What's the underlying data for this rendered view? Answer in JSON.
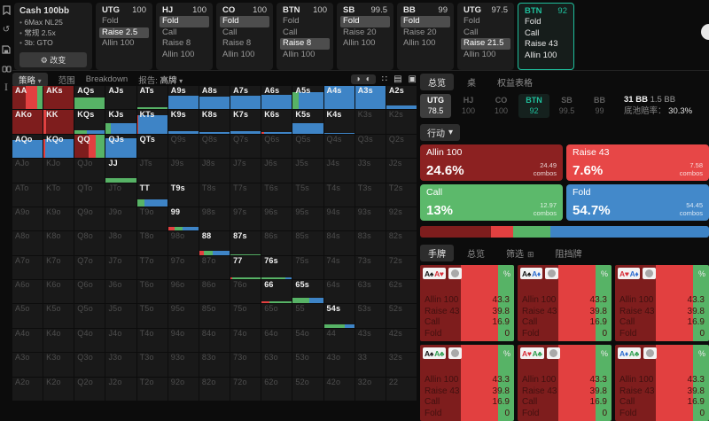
{
  "colors": {
    "a": "#7e1d1d",
    "r": "#e24040",
    "c": "#57b366",
    "f": "#3e84c6",
    "accent": "#1fbf9c",
    "card_a": "#8c2121",
    "card_r": "#e74747",
    "card_c": "#5cb96b",
    "card_f": "#4389ca"
  },
  "sidebar": {
    "icons": [
      "bookmark",
      "undo",
      "save",
      "cards",
      "text-cursor"
    ]
  },
  "top_bar": {
    "settings": {
      "title": "Cash 100bb",
      "items": [
        "6Max NL25",
        "常规 2.5x",
        "3b: GTO"
      ],
      "button_icon": "⚙",
      "button": "改变"
    },
    "positions": [
      {
        "name": "UTG",
        "stack": "100",
        "actions": [
          "Fold",
          "Raise 2.5",
          "Allin 100"
        ],
        "selected": 1,
        "active": false
      },
      {
        "name": "HJ",
        "stack": "100",
        "actions": [
          "Fold",
          "Call",
          "Raise 8",
          "Allin 100"
        ],
        "selected": 0,
        "active": false
      },
      {
        "name": "CO",
        "stack": "100",
        "actions": [
          "Fold",
          "Call",
          "Raise 8",
          "Allin 100"
        ],
        "selected": 0,
        "active": false
      },
      {
        "name": "BTN",
        "stack": "100",
        "actions": [
          "Fold",
          "Call",
          "Raise 8",
          "Allin 100"
        ],
        "selected": 2,
        "active": false
      },
      {
        "name": "SB",
        "stack": "99.5",
        "actions": [
          "Fold",
          "Raise 20",
          "Allin 100"
        ],
        "selected": 0,
        "active": false
      },
      {
        "name": "BB",
        "stack": "99",
        "actions": [
          "Fold",
          "Raise 20",
          "Allin 100"
        ],
        "selected": 0,
        "active": false
      },
      {
        "name": "UTG",
        "stack": "97.5",
        "actions": [
          "Fold",
          "Call",
          "Raise 21.5",
          "Allin 100"
        ],
        "selected": 2,
        "active": false
      },
      {
        "name": "BTN",
        "stack": "92",
        "actions": [
          "Fold",
          "Call",
          "Raise 43",
          "Allin 100"
        ],
        "selected": -1,
        "active": true
      }
    ]
  },
  "toolbar": {
    "tabs": [
      "策略",
      "范围",
      "Breakdown"
    ],
    "caret": "▾",
    "report_label": "报告:",
    "report_value": "高牌",
    "icons": [
      "pie",
      "contrast",
      "fit",
      "rows",
      "square"
    ]
  },
  "matrix": {
    "rows": [
      [
        [
          "AA",
          1,
          100,
          [
            [
              "a",
              43
            ],
            [
              "r",
              40
            ],
            [
              "c",
              17
            ]
          ]
        ],
        [
          "AKs",
          1,
          100,
          [
            [
              "a",
              100
            ]
          ]
        ],
        [
          "AQs",
          1,
          50,
          [
            [
              "c",
              100
            ]
          ]
        ],
        [
          "AJs",
          1
        ],
        [
          "ATs",
          1,
          8,
          [
            [
              "c",
              100
            ]
          ]
        ],
        [
          "A9s",
          1,
          60,
          [
            [
              "f",
              100
            ]
          ]
        ],
        [
          "A8s",
          1,
          55,
          [
            [
              "f",
              100
            ]
          ]
        ],
        [
          "A7s",
          1,
          58,
          [
            [
              "f",
              100
            ]
          ]
        ],
        [
          "A6s",
          1,
          63,
          [
            [
              "f",
              100
            ]
          ]
        ],
        [
          "A5s",
          1,
          72,
          [
            [
              "c",
              20
            ],
            [
              "f",
              80
            ]
          ]
        ],
        [
          "A4s",
          1,
          100,
          [
            [
              "f",
              100
            ]
          ]
        ],
        [
          "A3s",
          1,
          100,
          [
            [
              "f",
              100
            ]
          ]
        ],
        [
          "A2s",
          1,
          18,
          [
            [
              "f",
              100
            ]
          ]
        ]
      ],
      [
        [
          "AKo",
          1,
          100,
          [
            [
              "a",
              100
            ]
          ]
        ],
        [
          "KK",
          1,
          100,
          [
            [
              "r",
              8
            ],
            [
              "a",
              92
            ]
          ]
        ],
        [
          "KQs",
          1,
          14,
          [
            [
              "c",
              40
            ],
            [
              "f",
              60
            ]
          ]
        ],
        [
          "KJs",
          1,
          45,
          [
            [
              "c",
              15
            ],
            [
              "f",
              85
            ]
          ]
        ],
        [
          "KTs",
          1,
          78,
          [
            [
              "r",
              5
            ],
            [
              "f",
              95
            ]
          ]
        ],
        [
          "K9s",
          1,
          12,
          [
            [
              "f",
              100
            ]
          ]
        ],
        [
          "K8s",
          1,
          8,
          [
            [
              "f",
              100
            ]
          ]
        ],
        [
          "K7s",
          1,
          10,
          [
            [
              "f",
              100
            ]
          ]
        ],
        [
          "K6s",
          1,
          8,
          [
            [
              "r",
              8
            ],
            [
              "f",
              92
            ]
          ]
        ],
        [
          "K5s",
          1,
          45,
          [
            [
              "f",
              100
            ]
          ]
        ],
        [
          "K4s",
          1,
          4,
          [
            [
              "f",
              100
            ]
          ]
        ],
        [
          "K3s",
          0
        ],
        [
          "K2s",
          0
        ]
      ],
      [
        [
          "AQo",
          1,
          75,
          [
            [
              "f",
              100
            ]
          ]
        ],
        [
          "KQo",
          1,
          82,
          [
            [
              "r",
              4
            ],
            [
              "f",
              96
            ]
          ]
        ],
        [
          "QQ",
          1,
          100,
          [
            [
              "a",
              45
            ],
            [
              "r",
              25
            ],
            [
              "c",
              30
            ]
          ]
        ],
        [
          "QJs",
          1,
          85,
          [
            [
              "f",
              100
            ]
          ]
        ],
        [
          "QTs",
          1
        ],
        [
          "Q9s",
          0
        ],
        [
          "Q8s",
          0
        ],
        [
          "Q7s",
          0
        ],
        [
          "Q6s",
          0
        ],
        [
          "Q5s",
          0
        ],
        [
          "Q4s",
          0
        ],
        [
          "Q3s",
          0
        ],
        [
          "Q2s",
          0
        ]
      ],
      [
        [
          "AJo",
          0
        ],
        [
          "KJo",
          0
        ],
        [
          "QJo",
          0
        ],
        [
          "JJ",
          1,
          18,
          [
            [
              "c",
              100
            ]
          ]
        ],
        [
          "JTs",
          0
        ],
        [
          "J9s",
          0
        ],
        [
          "J8s",
          0
        ],
        [
          "J7s",
          0
        ],
        [
          "J6s",
          0
        ],
        [
          "J5s",
          0
        ],
        [
          "J4s",
          0
        ],
        [
          "J3s",
          0
        ],
        [
          "J2s",
          0
        ]
      ],
      [
        [
          "ATo",
          0
        ],
        [
          "KTo",
          0
        ],
        [
          "QTo",
          0
        ],
        [
          "JTo",
          0
        ],
        [
          "TT",
          1,
          30,
          [
            [
              "c",
              25
            ],
            [
              "f",
              75
            ]
          ]
        ],
        [
          "T9s",
          1
        ],
        [
          "T8s",
          0
        ],
        [
          "T7s",
          0
        ],
        [
          "T6s",
          0
        ],
        [
          "T5s",
          0
        ],
        [
          "T4s",
          0
        ],
        [
          "T3s",
          0
        ],
        [
          "T2s",
          0
        ]
      ],
      [
        [
          "A9o",
          0
        ],
        [
          "K9o",
          0
        ],
        [
          "Q9o",
          0
        ],
        [
          "J9o",
          0
        ],
        [
          "T9o",
          0
        ],
        [
          "99",
          1,
          18,
          [
            [
              "r",
              20
            ],
            [
              "c",
              27
            ],
            [
              "f",
              53
            ]
          ]
        ],
        [
          "98s",
          0
        ],
        [
          "97s",
          0
        ],
        [
          "96s",
          0
        ],
        [
          "95s",
          0
        ],
        [
          "94s",
          0
        ],
        [
          "93s",
          0
        ],
        [
          "92s",
          0
        ]
      ],
      [
        [
          "A8o",
          0
        ],
        [
          "K8o",
          0
        ],
        [
          "Q8o",
          0
        ],
        [
          "J8o",
          0
        ],
        [
          "T8o",
          0
        ],
        [
          "98o",
          0
        ],
        [
          "88",
          1,
          18,
          [
            [
              "r",
              15
            ],
            [
              "c",
              30
            ],
            [
              "f",
              55
            ]
          ]
        ],
        [
          "87s",
          1,
          4,
          [
            [
              "c",
              100
            ]
          ]
        ],
        [
          "86s",
          0
        ],
        [
          "85s",
          0
        ],
        [
          "84s",
          0
        ],
        [
          "83s",
          0
        ],
        [
          "82s",
          0
        ]
      ],
      [
        [
          "A7o",
          0
        ],
        [
          "K7o",
          0
        ],
        [
          "Q7o",
          0
        ],
        [
          "J7o",
          0
        ],
        [
          "T7o",
          0
        ],
        [
          "97o",
          0
        ],
        [
          "87o",
          0
        ],
        [
          "77",
          1,
          8,
          [
            [
              "r",
              6
            ],
            [
              "c",
              94
            ]
          ]
        ],
        [
          "76s",
          1,
          7,
          [
            [
              "c",
              78
            ],
            [
              "f",
              22
            ]
          ]
        ],
        [
          "75s",
          0
        ],
        [
          "74s",
          0
        ],
        [
          "73s",
          0
        ],
        [
          "72s",
          0
        ]
      ],
      [
        [
          "A6o",
          0
        ],
        [
          "K6o",
          0
        ],
        [
          "Q6o",
          0
        ],
        [
          "J6o",
          0
        ],
        [
          "T6o",
          0
        ],
        [
          "96o",
          0
        ],
        [
          "86o",
          0
        ],
        [
          "76o",
          0
        ],
        [
          "66",
          1,
          8,
          [
            [
              "r",
              25
            ],
            [
              "c",
              75
            ]
          ]
        ],
        [
          "65s",
          1,
          25,
          [
            [
              "c",
              55
            ],
            [
              "f",
              45
            ]
          ]
        ],
        [
          "64s",
          0
        ],
        [
          "63s",
          0
        ],
        [
          "62s",
          0
        ]
      ],
      [
        [
          "A5o",
          0
        ],
        [
          "K5o",
          0
        ],
        [
          "Q5o",
          0
        ],
        [
          "J5o",
          0
        ],
        [
          "T5o",
          0
        ],
        [
          "95o",
          0
        ],
        [
          "85o",
          0
        ],
        [
          "75o",
          0
        ],
        [
          "65o",
          0
        ],
        [
          "55",
          0
        ],
        [
          "54s",
          1,
          16,
          [
            [
              "c",
              68
            ],
            [
              "f",
              32
            ]
          ]
        ],
        [
          "53s",
          0
        ],
        [
          "52s",
          0
        ]
      ],
      [
        [
          "A4o",
          0
        ],
        [
          "K4o",
          0
        ],
        [
          "Q4o",
          0
        ],
        [
          "J4o",
          0
        ],
        [
          "T4o",
          0
        ],
        [
          "94o",
          0
        ],
        [
          "84o",
          0
        ],
        [
          "74o",
          0
        ],
        [
          "64o",
          0
        ],
        [
          "54o",
          0
        ],
        [
          "44",
          0
        ],
        [
          "43s",
          0
        ],
        [
          "42s",
          0
        ]
      ],
      [
        [
          "A3o",
          0
        ],
        [
          "K3o",
          0
        ],
        [
          "Q3o",
          0
        ],
        [
          "J3o",
          0
        ],
        [
          "T3o",
          0
        ],
        [
          "93o",
          0
        ],
        [
          "83o",
          0
        ],
        [
          "73o",
          0
        ],
        [
          "63o",
          0
        ],
        [
          "53o",
          0
        ],
        [
          "43o",
          0
        ],
        [
          "33",
          0
        ],
        [
          "32s",
          0
        ]
      ],
      [
        [
          "A2o",
          0
        ],
        [
          "K2o",
          0
        ],
        [
          "Q2o",
          0
        ],
        [
          "J2o",
          0
        ],
        [
          "T2o",
          0
        ],
        [
          "92o",
          0
        ],
        [
          "82o",
          0
        ],
        [
          "72o",
          0
        ],
        [
          "62o",
          0
        ],
        [
          "52o",
          0
        ],
        [
          "42o",
          0
        ],
        [
          "32o",
          0
        ],
        [
          "22",
          0
        ]
      ]
    ]
  },
  "right_panel": {
    "tabs": [
      "总览",
      "桌",
      "权益表格"
    ],
    "chips": [
      {
        "name": "UTG",
        "stack": "78.5",
        "state": "sel"
      },
      {
        "name": "HJ",
        "stack": "100",
        "state": ""
      },
      {
        "name": "CO",
        "stack": "100",
        "state": ""
      },
      {
        "name": "BTN",
        "stack": "92",
        "state": "accent"
      },
      {
        "name": "SB",
        "stack": "99.5",
        "state": ""
      },
      {
        "name": "BB",
        "stack": "99",
        "state": ""
      }
    ],
    "pot": {
      "bb": "31 BB",
      "extra": "1.5 BB",
      "odds_label": "底池赔率：",
      "odds_value": "30.3%"
    },
    "action_dropdown": "行动",
    "actions": [
      {
        "label": "Allin 100",
        "pct": "24.6%",
        "combos": "24.49",
        "unit": "combos",
        "key": "card_a"
      },
      {
        "label": "Raise 43",
        "pct": "7.6%",
        "combos": "7.58",
        "unit": "combos",
        "key": "card_r"
      },
      {
        "label": "Call",
        "pct": "13%",
        "combos": "12.97",
        "unit": "combos",
        "key": "card_c"
      },
      {
        "label": "Fold",
        "pct": "54.7%",
        "combos": "54.45",
        "unit": "combos",
        "key": "card_f"
      }
    ],
    "strategy_bar": [
      [
        "a",
        24.6
      ],
      [
        "r",
        7.6
      ],
      [
        "c",
        13
      ],
      [
        "f",
        54.7
      ]
    ],
    "hand_tabs": [
      "手牌",
      "总览",
      "筛选",
      "阻挡牌"
    ],
    "combo_grid": {
      "bands": [
        [
          "a",
          43.3
        ],
        [
          "r",
          39.8
        ],
        [
          "c",
          16.9
        ]
      ],
      "pct_symbol": "%",
      "rows": [
        [
          "Allin 100",
          "43.3"
        ],
        [
          "Raise 43",
          "39.8"
        ],
        [
          "Call",
          "16.9"
        ],
        [
          "Fold",
          "0"
        ]
      ],
      "combos": [
        [
          [
            "A",
            "s"
          ],
          [
            "A",
            "h"
          ]
        ],
        [
          [
            "A",
            "s"
          ],
          [
            "A",
            "d"
          ]
        ],
        [
          [
            "A",
            "h"
          ],
          [
            "A",
            "d"
          ]
        ],
        [
          [
            "A",
            "s"
          ],
          [
            "A",
            "c"
          ]
        ],
        [
          [
            "A",
            "h"
          ],
          [
            "A",
            "c"
          ]
        ],
        [
          [
            "A",
            "d"
          ],
          [
            "A",
            "c"
          ]
        ]
      ],
      "suit_glyphs": {
        "s": "♠",
        "h": "♥",
        "d": "♦",
        "c": "♣"
      },
      "suit_colors": {
        "s": "#151515",
        "h": "#d8303a",
        "d": "#2f6fd0",
        "c": "#2e9e4f"
      }
    }
  }
}
